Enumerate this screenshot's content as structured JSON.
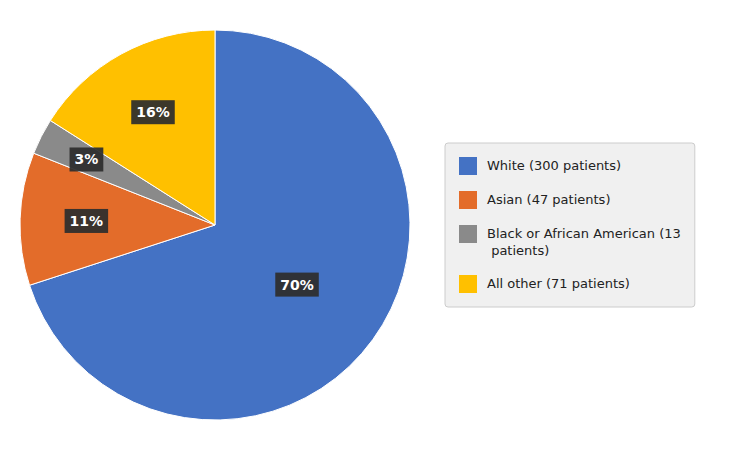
{
  "chart_data": {
    "type": "pie",
    "categories": [
      "White (300 patients)",
      "Asian (47 patients)",
      "Black or African American (13\n  patients)",
      "All other (71 patients)"
    ],
    "values": [
      70,
      11,
      3,
      16
    ],
    "value_labels": [
      "70%",
      "11%",
      "3%",
      "16%"
    ],
    "colors": [
      "#4472C4",
      "#E36C2A",
      "#8A8A8A",
      "#FFC000"
    ],
    "data_labels": true,
    "legend": "right"
  }
}
